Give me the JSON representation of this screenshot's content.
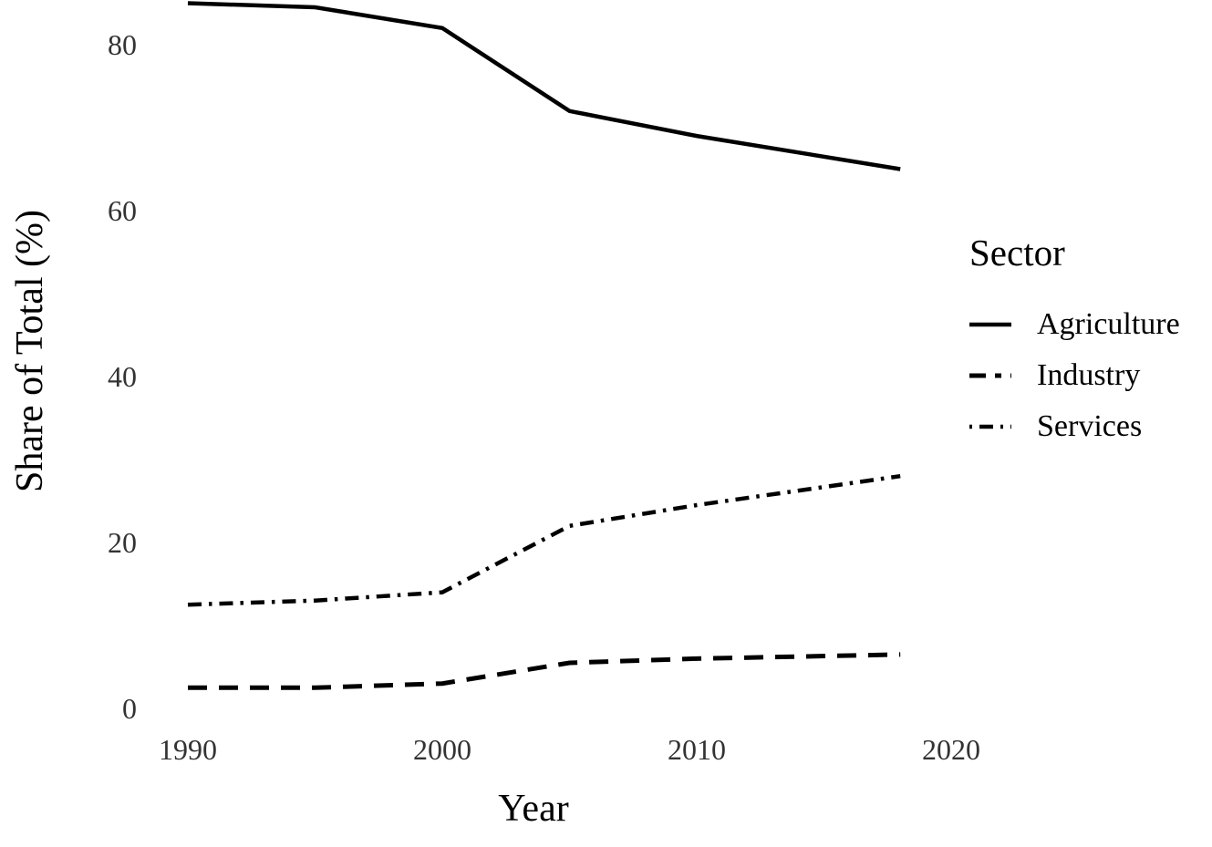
{
  "figure": {
    "background": "#ffffff",
    "line_color": "#000000",
    "tick_label_color": "#333333"
  },
  "chart_data": {
    "type": "line",
    "title": "",
    "xlabel": "Year",
    "ylabel": "Share of Total (%)",
    "x": [
      1990,
      1995,
      2000,
      2005,
      2010,
      2018
    ],
    "series": [
      {
        "name": "Agriculture",
        "linestyle": "solid",
        "color": "#000000",
        "values": [
          85,
          84.5,
          82,
          72,
          69,
          65
        ]
      },
      {
        "name": "Industry",
        "linestyle": "dashed",
        "color": "#000000",
        "values": [
          2.5,
          2.5,
          3,
          5.5,
          6,
          6.5
        ]
      },
      {
        "name": "Services",
        "linestyle": "dashdot",
        "color": "#000000",
        "values": [
          12.5,
          13,
          14,
          22,
          24.5,
          28
        ]
      }
    ],
    "x_ticks": [
      "1990",
      "2000",
      "2010",
      "2020"
    ],
    "x_tick_values": [
      1990,
      2000,
      2010,
      2020
    ],
    "y_ticks": [
      "0",
      "20",
      "40",
      "60",
      "80"
    ],
    "y_tick_values": [
      0,
      20,
      40,
      60,
      80
    ],
    "xlim": [
      1988,
      2021.3
    ],
    "ylim": [
      0,
      86
    ],
    "grid": false,
    "axis_lines": false,
    "legend": {
      "title": "Sector",
      "position": "right",
      "entries": [
        "Agriculture",
        "Industry",
        "Services"
      ]
    }
  }
}
